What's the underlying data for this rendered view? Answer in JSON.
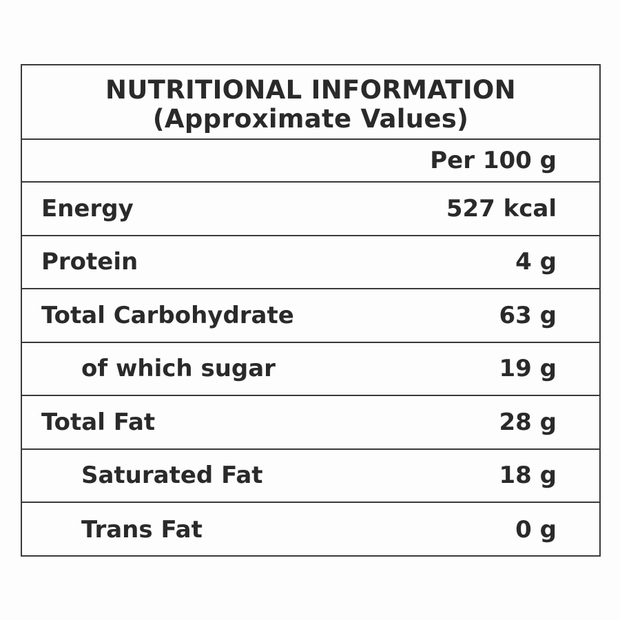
{
  "title": {
    "line1": "NUTRITIONAL INFORMATION",
    "line2": "(Approximate Values)"
  },
  "column_header": "Per 100 g",
  "rows": [
    {
      "label": "Energy",
      "value": "527 kcal",
      "indent": false
    },
    {
      "label": "Protein",
      "value": "4 g",
      "indent": false
    },
    {
      "label": "Total Carbohydrate",
      "value": "63 g",
      "indent": false
    },
    {
      "label": "of which sugar",
      "value": "19 g",
      "indent": true
    },
    {
      "label": "Total Fat",
      "value": "28 g",
      "indent": false
    },
    {
      "label": "Saturated Fat",
      "value": "18 g",
      "indent": true
    },
    {
      "label": "Trans Fat",
      "value": "0 g",
      "indent": true
    }
  ]
}
